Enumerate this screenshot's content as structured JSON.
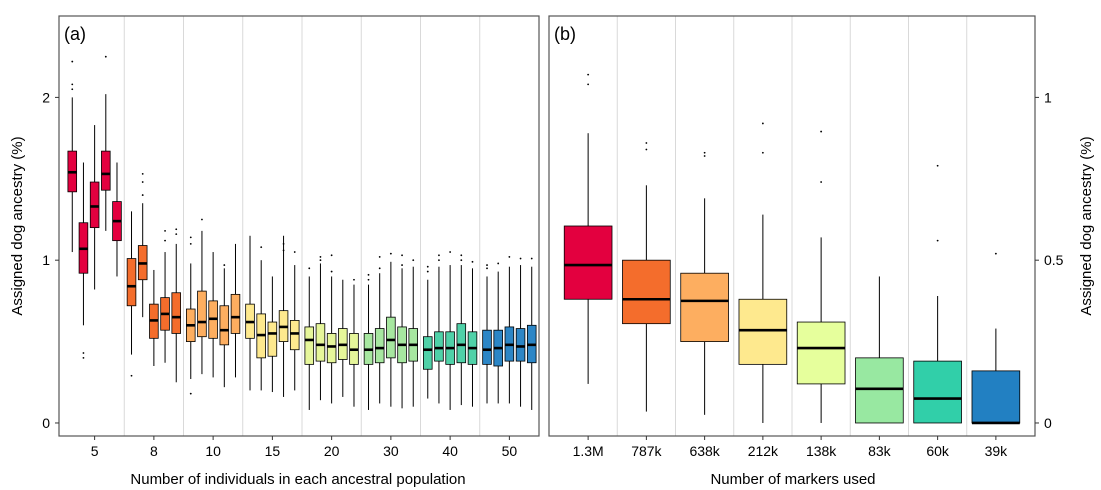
{
  "chart_data": [
    {
      "type": "box",
      "panel_label": "(a)",
      "xlabel": "Number of individuals in each ancestral population",
      "ylabel": "Assigned dog ancestry (%)",
      "ylim": [
        -0.08,
        2.5
      ],
      "yticks": [
        0,
        1,
        2
      ],
      "categories": [
        "5",
        "8",
        "10",
        "15",
        "20",
        "30",
        "40",
        "50"
      ],
      "grid": "vertical separators between groups",
      "groups": [
        {
          "label": "5",
          "color": "#e3003f",
          "boxes": [
            {
              "q1": 1.42,
              "median": 1.54,
              "q3": 1.67,
              "wlow": 1.05,
              "whigh": 2.0,
              "outliers": [
                2.05,
                2.08,
                2.22
              ]
            },
            {
              "q1": 0.92,
              "median": 1.07,
              "q3": 1.23,
              "wlow": 0.6,
              "whigh": 1.6,
              "outliers": [
                0.4,
                0.43
              ]
            },
            {
              "q1": 1.2,
              "median": 1.33,
              "q3": 1.48,
              "wlow": 0.82,
              "whigh": 1.83,
              "outliers": []
            },
            {
              "q1": 1.43,
              "median": 1.53,
              "q3": 1.67,
              "wlow": 1.18,
              "whigh": 2.02,
              "outliers": [
                2.25
              ]
            },
            {
              "q1": 1.12,
              "median": 1.24,
              "q3": 1.36,
              "wlow": 0.9,
              "whigh": 1.6,
              "outliers": []
            }
          ]
        },
        {
          "label": "8",
          "color": "#f46d2c",
          "boxes": [
            {
              "q1": 0.72,
              "median": 0.84,
              "q3": 1.01,
              "wlow": 0.42,
              "whigh": 1.3,
              "outliers": [
                0.29
              ]
            },
            {
              "q1": 0.88,
              "median": 0.98,
              "q3": 1.09,
              "wlow": 0.65,
              "whigh": 1.35,
              "outliers": [
                1.4,
                1.48,
                1.53
              ]
            },
            {
              "q1": 0.52,
              "median": 0.63,
              "q3": 0.73,
              "wlow": 0.35,
              "whigh": 0.94,
              "outliers": []
            },
            {
              "q1": 0.57,
              "median": 0.67,
              "q3": 0.77,
              "wlow": 0.37,
              "whigh": 1.05,
              "outliers": [
                1.12,
                1.18
              ]
            },
            {
              "q1": 0.55,
              "median": 0.65,
              "q3": 0.8,
              "wlow": 0.25,
              "whigh": 1.1,
              "outliers": [
                1.16,
                1.19
              ]
            }
          ]
        },
        {
          "label": "10",
          "color": "#fdae60",
          "boxes": [
            {
              "q1": 0.5,
              "median": 0.6,
              "q3": 0.7,
              "wlow": 0.27,
              "whigh": 0.98,
              "outliers": [
                0.18,
                1.1,
                1.14
              ]
            },
            {
              "q1": 0.53,
              "median": 0.62,
              "q3": 0.81,
              "wlow": 0.3,
              "whigh": 1.18,
              "outliers": [
                1.25
              ]
            },
            {
              "q1": 0.52,
              "median": 0.64,
              "q3": 0.75,
              "wlow": 0.28,
              "whigh": 1.05,
              "outliers": []
            },
            {
              "q1": 0.48,
              "median": 0.57,
              "q3": 0.72,
              "wlow": 0.22,
              "whigh": 0.95,
              "outliers": [
                0.97
              ]
            },
            {
              "q1": 0.55,
              "median": 0.65,
              "q3": 0.79,
              "wlow": 0.28,
              "whigh": 1.1,
              "outliers": []
            }
          ]
        },
        {
          "label": "15",
          "color": "#fee98e",
          "boxes": [
            {
              "q1": 0.52,
              "median": 0.62,
              "q3": 0.73,
              "wlow": 0.2,
              "whigh": 1.15,
              "outliers": []
            },
            {
              "q1": 0.4,
              "median": 0.54,
              "q3": 0.67,
              "wlow": 0.2,
              "whigh": 1.0,
              "outliers": [
                1.08
              ]
            },
            {
              "q1": 0.41,
              "median": 0.55,
              "q3": 0.62,
              "wlow": 0.19,
              "whigh": 0.9,
              "outliers": []
            },
            {
              "q1": 0.5,
              "median": 0.59,
              "q3": 0.69,
              "wlow": 0.16,
              "whigh": 1.15,
              "outliers": [
                1.06,
                1.1
              ]
            },
            {
              "q1": 0.45,
              "median": 0.55,
              "q3": 0.63,
              "wlow": 0.2,
              "whigh": 0.97,
              "outliers": [
                1.05
              ]
            }
          ]
        },
        {
          "label": "20",
          "color": "#e6f69a",
          "boxes": [
            {
              "q1": 0.36,
              "median": 0.51,
              "q3": 0.59,
              "wlow": 0.08,
              "whigh": 0.9,
              "outliers": [
                0.95
              ]
            },
            {
              "q1": 0.38,
              "median": 0.48,
              "q3": 0.61,
              "wlow": 0.14,
              "whigh": 0.98,
              "outliers": [
                1.0,
                1.02
              ]
            },
            {
              "q1": 0.37,
              "median": 0.47,
              "q3": 0.55,
              "wlow": 0.12,
              "whigh": 0.9,
              "outliers": [
                0.93,
                1.03
              ]
            },
            {
              "q1": 0.39,
              "median": 0.48,
              "q3": 0.58,
              "wlow": 0.16,
              "whigh": 0.88,
              "outliers": []
            },
            {
              "q1": 0.36,
              "median": 0.45,
              "q3": 0.55,
              "wlow": 0.1,
              "whigh": 0.85,
              "outliers": [
                0.88
              ]
            }
          ]
        },
        {
          "label": "30",
          "color": "#a7e7a0",
          "boxes": [
            {
              "q1": 0.36,
              "median": 0.45,
              "q3": 0.55,
              "wlow": 0.08,
              "whigh": 0.85,
              "outliers": [
                0.88,
                0.91
              ]
            },
            {
              "q1": 0.37,
              "median": 0.46,
              "q3": 0.58,
              "wlow": 0.12,
              "whigh": 0.92,
              "outliers": [
                0.95,
                1.02
              ]
            },
            {
              "q1": 0.4,
              "median": 0.51,
              "q3": 0.65,
              "wlow": 0.1,
              "whigh": 0.99,
              "outliers": [
                1.04
              ]
            },
            {
              "q1": 0.37,
              "median": 0.48,
              "q3": 0.59,
              "wlow": 0.09,
              "whigh": 0.95,
              "outliers": [
                0.97,
                1.03
              ]
            },
            {
              "q1": 0.38,
              "median": 0.48,
              "q3": 0.58,
              "wlow": 0.1,
              "whigh": 0.96,
              "outliers": [
                1.0
              ]
            }
          ]
        },
        {
          "label": "40",
          "color": "#4fd1a8",
          "boxes": [
            {
              "q1": 0.33,
              "median": 0.45,
              "q3": 0.53,
              "wlow": 0.15,
              "whigh": 0.88,
              "outliers": [
                0.93,
                0.96
              ]
            },
            {
              "q1": 0.38,
              "median": 0.46,
              "q3": 0.56,
              "wlow": 0.12,
              "whigh": 0.96,
              "outliers": [
                1.0,
                1.03
              ]
            },
            {
              "q1": 0.36,
              "median": 0.46,
              "q3": 0.56,
              "wlow": 0.08,
              "whigh": 0.97,
              "outliers": [
                1.05
              ]
            },
            {
              "q1": 0.37,
              "median": 0.48,
              "q3": 0.61,
              "wlow": 0.11,
              "whigh": 0.97,
              "outliers": [
                1.0,
                1.03
              ]
            },
            {
              "q1": 0.36,
              "median": 0.46,
              "q3": 0.56,
              "wlow": 0.1,
              "whigh": 0.95,
              "outliers": [
                0.99
              ]
            }
          ]
        },
        {
          "label": "50",
          "color": "#2c86c6",
          "boxes": [
            {
              "q1": 0.36,
              "median": 0.45,
              "q3": 0.57,
              "wlow": 0.12,
              "whigh": 0.9,
              "outliers": [
                0.95,
                0.97
              ]
            },
            {
              "q1": 0.35,
              "median": 0.46,
              "q3": 0.57,
              "wlow": 0.12,
              "whigh": 0.93,
              "outliers": [
                0.98
              ]
            },
            {
              "q1": 0.38,
              "median": 0.48,
              "q3": 0.59,
              "wlow": 0.12,
              "whigh": 0.96,
              "outliers": [
                1.02
              ]
            },
            {
              "q1": 0.38,
              "median": 0.47,
              "q3": 0.58,
              "wlow": 0.1,
              "whigh": 0.97,
              "outliers": [
                1.01
              ]
            },
            {
              "q1": 0.37,
              "median": 0.48,
              "q3": 0.6,
              "wlow": 0.08,
              "whigh": 0.96,
              "outliers": [
                1.01
              ]
            }
          ]
        }
      ]
    },
    {
      "type": "box",
      "panel_label": "(b)",
      "xlabel": "Number of markers used",
      "ylabel": "Assigned dog ancestry (%)",
      "ylim": [
        -0.04,
        1.25
      ],
      "yticks": [
        0,
        0.5,
        1
      ],
      "categories": [
        "1.3M",
        "787k",
        "638k",
        "212k",
        "138k",
        "83k",
        "60k",
        "39k"
      ],
      "grid": "vertical separators between groups",
      "boxes": [
        {
          "label": "1.3M",
          "color": "#e3003f",
          "q1": 0.38,
          "median": 0.485,
          "q3": 0.605,
          "wlow": 0.12,
          "whigh": 0.89,
          "outliers": [
            1.07,
            1.04
          ]
        },
        {
          "label": "787k",
          "color": "#f46d2c",
          "q1": 0.305,
          "median": 0.38,
          "q3": 0.5,
          "wlow": 0.035,
          "whigh": 0.73,
          "outliers": [
            0.86,
            0.84
          ]
        },
        {
          "label": "638k",
          "color": "#fdae60",
          "q1": 0.25,
          "median": 0.375,
          "q3": 0.46,
          "wlow": 0.025,
          "whigh": 0.69,
          "outliers": [
            0.83,
            0.82
          ]
        },
        {
          "label": "212k",
          "color": "#fee98e",
          "q1": 0.18,
          "median": 0.285,
          "q3": 0.38,
          "wlow": 0.0,
          "whigh": 0.64,
          "outliers": [
            0.92,
            0.83
          ]
        },
        {
          "label": "138k",
          "color": "#e6ff9c",
          "q1": 0.12,
          "median": 0.23,
          "q3": 0.31,
          "wlow": 0.0,
          "whigh": 0.57,
          "outliers": [
            0.895,
            0.74
          ]
        },
        {
          "label": "83k",
          "color": "#98e8a1",
          "q1": 0.0,
          "median": 0.105,
          "q3": 0.2,
          "wlow": 0.0,
          "whigh": 0.45,
          "outliers": []
        },
        {
          "label": "60k",
          "color": "#31cfa9",
          "q1": 0.0,
          "median": 0.075,
          "q3": 0.19,
          "wlow": 0.0,
          "whigh": 0.39,
          "outliers": [
            0.79,
            0.56
          ]
        },
        {
          "label": "39k",
          "color": "#2280c2",
          "q1": 0.0,
          "median": 0.0,
          "q3": 0.16,
          "wlow": 0.0,
          "whigh": 0.29,
          "outliers": [
            0.52
          ]
        }
      ]
    }
  ]
}
